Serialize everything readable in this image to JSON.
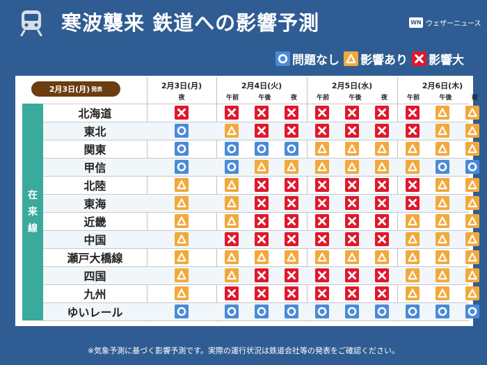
{
  "header": {
    "title": "寒波襲来 鉄道への影響予測",
    "brand": "ウェザーニュース",
    "brand_logo": "WN",
    "icon": "train-icon"
  },
  "legend": [
    {
      "symbol": "circle",
      "label": "問題なし"
    },
    {
      "symbol": "triangle",
      "label": "影響あり"
    },
    {
      "symbol": "cross",
      "label": "影響大"
    }
  ],
  "colors": {
    "background": "#2f5d93",
    "circle": "#4a8ad8",
    "triangle": "#f2a93b",
    "cross": "#e0182b",
    "group_band": "#3aaa9c",
    "date_pill": "#6b3d10"
  },
  "issue_date": {
    "date": "2月3日(月)",
    "suffix": "発表"
  },
  "group_label": "在来線",
  "days": [
    {
      "label": "2月3日(月)",
      "periods": [
        "夜"
      ]
    },
    {
      "label": "2月4日(火)",
      "periods": [
        "午前",
        "午後",
        "夜"
      ]
    },
    {
      "label": "2月5日(水)",
      "periods": [
        "午前",
        "午後",
        "夜"
      ]
    },
    {
      "label": "2月6日(木)",
      "periods": [
        "午前",
        "午後",
        "夜"
      ]
    }
  ],
  "rows": [
    {
      "name": "北海道",
      "values": [
        "x",
        "x",
        "x",
        "x",
        "x",
        "x",
        "x",
        "x",
        "t",
        "t"
      ]
    },
    {
      "name": "東北",
      "values": [
        "o",
        "t",
        "x",
        "x",
        "x",
        "x",
        "x",
        "x",
        "t",
        "t"
      ]
    },
    {
      "name": "関東",
      "values": [
        "o",
        "o",
        "o",
        "o",
        "t",
        "t",
        "t",
        "t",
        "t",
        "t"
      ]
    },
    {
      "name": "甲信",
      "values": [
        "o",
        "o",
        "t",
        "t",
        "t",
        "t",
        "t",
        "t",
        "o",
        "o"
      ]
    },
    {
      "name": "北陸",
      "values": [
        "t",
        "t",
        "x",
        "x",
        "x",
        "x",
        "x",
        "x",
        "t",
        "t"
      ]
    },
    {
      "name": "東海",
      "values": [
        "t",
        "t",
        "x",
        "x",
        "x",
        "x",
        "x",
        "x",
        "t",
        "t"
      ]
    },
    {
      "name": "近畿",
      "values": [
        "t",
        "t",
        "x",
        "x",
        "x",
        "x",
        "x",
        "t",
        "t",
        "t"
      ]
    },
    {
      "name": "中国",
      "values": [
        "t",
        "x",
        "x",
        "x",
        "x",
        "x",
        "x",
        "t",
        "t",
        "t"
      ]
    },
    {
      "name": "瀬戸大橋線",
      "values": [
        "t",
        "t",
        "t",
        "t",
        "t",
        "t",
        "t",
        "t",
        "t",
        "t"
      ]
    },
    {
      "name": "四国",
      "values": [
        "t",
        "t",
        "x",
        "x",
        "x",
        "x",
        "x",
        "t",
        "t",
        "t"
      ]
    },
    {
      "name": "九州",
      "values": [
        "t",
        "x",
        "x",
        "x",
        "x",
        "x",
        "x",
        "t",
        "t",
        "t"
      ]
    },
    {
      "name": "ゆいレール",
      "values": [
        "o",
        "o",
        "o",
        "o",
        "o",
        "o",
        "o",
        "o",
        "o",
        "o"
      ]
    }
  ],
  "footnote": "※気象予測に基づく影響予測です。実際の運行状況は鉄道会社等の発表をご確認ください。"
}
